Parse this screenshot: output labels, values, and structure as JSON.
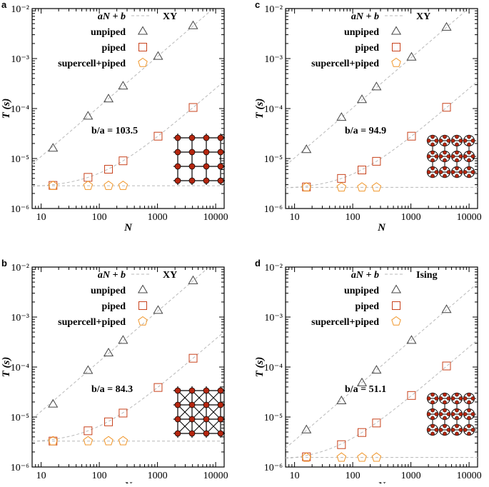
{
  "chart_data": [
    {
      "type": "scatter",
      "panel_label": "a",
      "lattice": "square",
      "model": "XY",
      "ratio_label": "b/a = 103.5",
      "xlabel": "N",
      "ylabel": "T (s)",
      "xscale": "log",
      "yscale": "log",
      "xlim": [
        7,
        14000
      ],
      "ylim": [
        1e-06,
        0.01
      ],
      "xticks": [
        "10",
        "100",
        "1000",
        "10000"
      ],
      "yticks": [
        "10⁻⁶",
        "10⁻⁵",
        "10⁻⁴",
        "10⁻³",
        "10⁻²"
      ],
      "legend": [
        "aN + b",
        "unpiped",
        "piped",
        "supercell+piped"
      ],
      "series": [
        {
          "name": "unpiped",
          "marker": "triangle",
          "x": [
            16,
            64,
            144,
            256,
            1024,
            4096
          ],
          "y": [
            1.6e-05,
            7e-05,
            0.000155,
            0.00028,
            0.0011,
            0.0045
          ]
        },
        {
          "name": "piped",
          "marker": "square",
          "x": [
            16,
            64,
            144,
            256,
            1024,
            4096
          ],
          "y": [
            2.9e-06,
            4.2e-06,
            6.1e-06,
            9e-06,
            2.8e-05,
            0.000105
          ]
        },
        {
          "name": "supercell+piped",
          "marker": "pentagon",
          "x": [
            16,
            64,
            144,
            256
          ],
          "y": [
            2.85e-06,
            2.85e-06,
            2.85e-06,
            2.85e-06
          ]
        }
      ],
      "fits": [
        {
          "for": "unpiped",
          "a": 1.1e-06,
          "b": 0
        },
        {
          "for": "piped",
          "a": 2.5e-08,
          "b": 2.6e-06
        },
        {
          "for": "supercell+piped",
          "a": 0,
          "b": 2.85e-06
        }
      ]
    },
    {
      "type": "scatter",
      "panel_label": "b",
      "lattice": "square-diagonal",
      "model": "XY",
      "ratio_label": "b/a = 84.3",
      "xlabel": "N",
      "ylabel": "T (s)",
      "xscale": "log",
      "yscale": "log",
      "xlim": [
        7,
        14000
      ],
      "ylim": [
        1e-06,
        0.01
      ],
      "xticks": [
        "10",
        "100",
        "1000",
        "10000"
      ],
      "yticks": [
        "10⁻⁶",
        "10⁻⁵",
        "10⁻⁴",
        "10⁻³",
        "10⁻²"
      ],
      "legend": [
        "aN + b",
        "unpiped",
        "piped",
        "supercell+piped"
      ],
      "series": [
        {
          "name": "unpiped",
          "marker": "triangle",
          "x": [
            16,
            64,
            144,
            256,
            1024,
            4096
          ],
          "y": [
            1.8e-05,
            8.5e-05,
            0.00019,
            0.00034,
            0.00135,
            0.0053
          ]
        },
        {
          "name": "piped",
          "marker": "square",
          "x": [
            16,
            64,
            144,
            256,
            1024,
            4096
          ],
          "y": [
            3.3e-06,
            5.3e-06,
            8e-06,
            1.2e-05,
            3.9e-05,
            0.00015
          ]
        },
        {
          "name": "supercell+piped",
          "marker": "pentagon",
          "x": [
            16,
            64,
            144,
            256
          ],
          "y": [
            3.3e-06,
            3.3e-06,
            3.3e-06,
            3.3e-06
          ]
        }
      ],
      "fits": [
        {
          "for": "unpiped",
          "a": 1.3e-06,
          "b": 0
        },
        {
          "for": "piped",
          "a": 3.6e-08,
          "b": 3e-06
        },
        {
          "for": "supercell+piped",
          "a": 0,
          "b": 3.3e-06
        }
      ]
    },
    {
      "type": "scatter",
      "panel_label": "c",
      "lattice": "honeycomb",
      "model": "XY",
      "ratio_label": "b/a = 94.9",
      "xlabel": "N",
      "ylabel": "T (s)",
      "xscale": "log",
      "yscale": "log",
      "xlim": [
        7,
        14000
      ],
      "ylim": [
        1e-06,
        0.01
      ],
      "xticks": [
        "10",
        "100",
        "1000",
        "10000"
      ],
      "yticks": [
        "10⁻⁶",
        "10⁻⁵",
        "10⁻⁴",
        "10⁻³",
        "10⁻²"
      ],
      "legend": [
        "aN + b",
        "unpiped",
        "piped",
        "supercell+piped"
      ],
      "series": [
        {
          "name": "unpiped",
          "marker": "triangle",
          "x": [
            16,
            64,
            144,
            256,
            1024,
            4096
          ],
          "y": [
            1.5e-05,
            6.6e-05,
            0.00015,
            0.00027,
            0.00106,
            0.0042
          ]
        },
        {
          "name": "piped",
          "marker": "square",
          "x": [
            16,
            64,
            144,
            256,
            1024,
            4096
          ],
          "y": [
            2.7e-06,
            4e-06,
            5.9e-06,
            8.8e-06,
            2.8e-05,
            0.000106
          ]
        },
        {
          "name": "supercell+piped",
          "marker": "pentagon",
          "x": [
            16,
            64,
            144,
            256
          ],
          "y": [
            2.65e-06,
            2.65e-06,
            2.65e-06,
            2.65e-06
          ]
        }
      ],
      "fits": [
        {
          "for": "unpiped",
          "a": 1.03e-06,
          "b": 0
        },
        {
          "for": "piped",
          "a": 2.5e-08,
          "b": 2.4e-06
        },
        {
          "for": "supercell+piped",
          "a": 0,
          "b": 2.65e-06
        }
      ]
    },
    {
      "type": "scatter",
      "panel_label": "d",
      "lattice": "honeycomb",
      "model": "Ising",
      "ratio_label": "b/a = 51.1",
      "xlabel": "N",
      "ylabel": "T (s)",
      "xscale": "log",
      "yscale": "log",
      "xlim": [
        7,
        14000
      ],
      "ylim": [
        1e-06,
        0.01
      ],
      "xticks": [
        "10",
        "100",
        "1000",
        "10000"
      ],
      "yticks": [
        "10⁻⁶",
        "10⁻⁵",
        "10⁻⁴",
        "10⁻³",
        "10⁻²"
      ],
      "legend": [
        "aN + b",
        "unpiped",
        "piped",
        "supercell+piped"
      ],
      "series": [
        {
          "name": "unpiped",
          "marker": "triangle",
          "x": [
            16,
            64,
            144,
            256,
            1024,
            4096
          ],
          "y": [
            5.5e-06,
            2.1e-05,
            4.8e-05,
            8.6e-05,
            0.00034,
            0.0014
          ]
        },
        {
          "name": "piped",
          "marker": "square",
          "x": [
            16,
            64,
            144,
            256,
            1024,
            4096
          ],
          "y": [
            1.6e-06,
            2.8e-06,
            4.9e-06,
            7.6e-06,
            2.7e-05,
            0.000105
          ]
        },
        {
          "name": "supercell+piped",
          "marker": "pentagon",
          "x": [
            16,
            64,
            144,
            256
          ],
          "y": [
            1.55e-06,
            1.55e-06,
            1.55e-06,
            1.55e-06
          ]
        }
      ],
      "fits": [
        {
          "for": "unpiped",
          "a": 3.4e-07,
          "b": 0
        },
        {
          "for": "piped",
          "a": 2.5e-08,
          "b": 1.3e-06
        },
        {
          "for": "supercell+piped",
          "a": 0,
          "b": 1.55e-06
        }
      ]
    }
  ],
  "colors": {
    "unpiped": "#444444",
    "piped": "#c8421c",
    "supercell": "#f0962a",
    "fit": "#b9b9b9",
    "node": "#b5260f"
  }
}
